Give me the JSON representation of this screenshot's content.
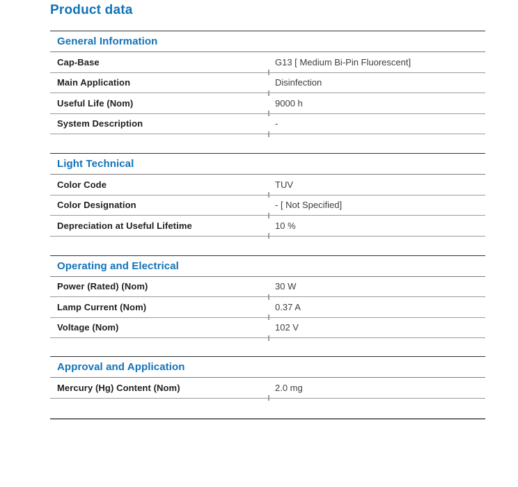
{
  "page": {
    "title": "Product data",
    "accent_color": "#1173b8"
  },
  "sections": [
    {
      "heading": "General Information",
      "rows": [
        {
          "label": "Cap-Base",
          "value": "G13 [ Medium Bi-Pin Fluorescent]"
        },
        {
          "label": "Main Application",
          "value": "Disinfection"
        },
        {
          "label": "Useful Life (Nom)",
          "value": "9000 h"
        },
        {
          "label": "System Description",
          "value": "-"
        }
      ]
    },
    {
      "heading": "Light Technical",
      "rows": [
        {
          "label": "Color Code",
          "value": "TUV"
        },
        {
          "label": "Color Designation",
          "value": "- [ Not Specified]"
        },
        {
          "label": "Depreciation at Useful Lifetime",
          "value": "10 %"
        }
      ]
    },
    {
      "heading": "Operating and Electrical",
      "rows": [
        {
          "label": "Power (Rated) (Nom)",
          "value": "30 W"
        },
        {
          "label": "Lamp Current (Nom)",
          "value": "0.37 A"
        },
        {
          "label": "Voltage (Nom)",
          "value": "102 V"
        }
      ]
    },
    {
      "heading": "Approval and Application",
      "rows": [
        {
          "label": "Mercury (Hg) Content (Nom)",
          "value": "2.0 mg"
        }
      ]
    }
  ]
}
